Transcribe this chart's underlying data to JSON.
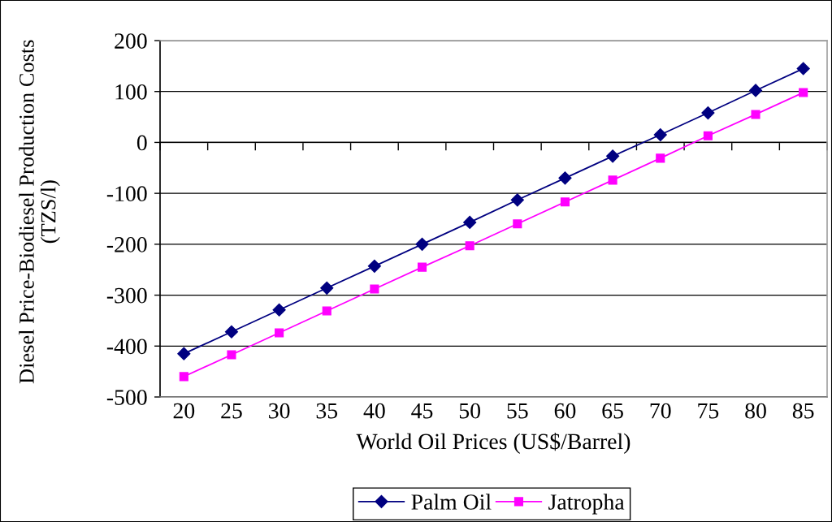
{
  "chart_data": {
    "type": "line",
    "xlabel": "World Oil Prices (US$/Barrel)",
    "ylabel": "Diesel Price-Biodiesel Production Costs\n(TZS/l)",
    "categories": [
      "20",
      "25",
      "30",
      "35",
      "40",
      "45",
      "50",
      "55",
      "60",
      "65",
      "70",
      "75",
      "80",
      "85"
    ],
    "series": [
      {
        "name": "Palm Oil",
        "color": "#000080",
        "marker": "diamond",
        "values": [
          -415,
          -372,
          -329,
          -286,
          -243,
          -200,
          -157,
          -113,
          -70,
          -27,
          15,
          58,
          102,
          145
        ]
      },
      {
        "name": "Jatropha",
        "color": "#ff00ff",
        "marker": "square",
        "values": [
          -460,
          -417,
          -374,
          -331,
          -288,
          -245,
          -203,
          -160,
          -117,
          -74,
          -31,
          13,
          55,
          98
        ]
      }
    ],
    "ylim": [
      -500,
      200
    ],
    "yticks": [
      -500,
      -400,
      -300,
      -200,
      -100,
      0,
      100,
      200
    ],
    "grid": "y",
    "legend": "bottom",
    "line_style": "solid"
  }
}
